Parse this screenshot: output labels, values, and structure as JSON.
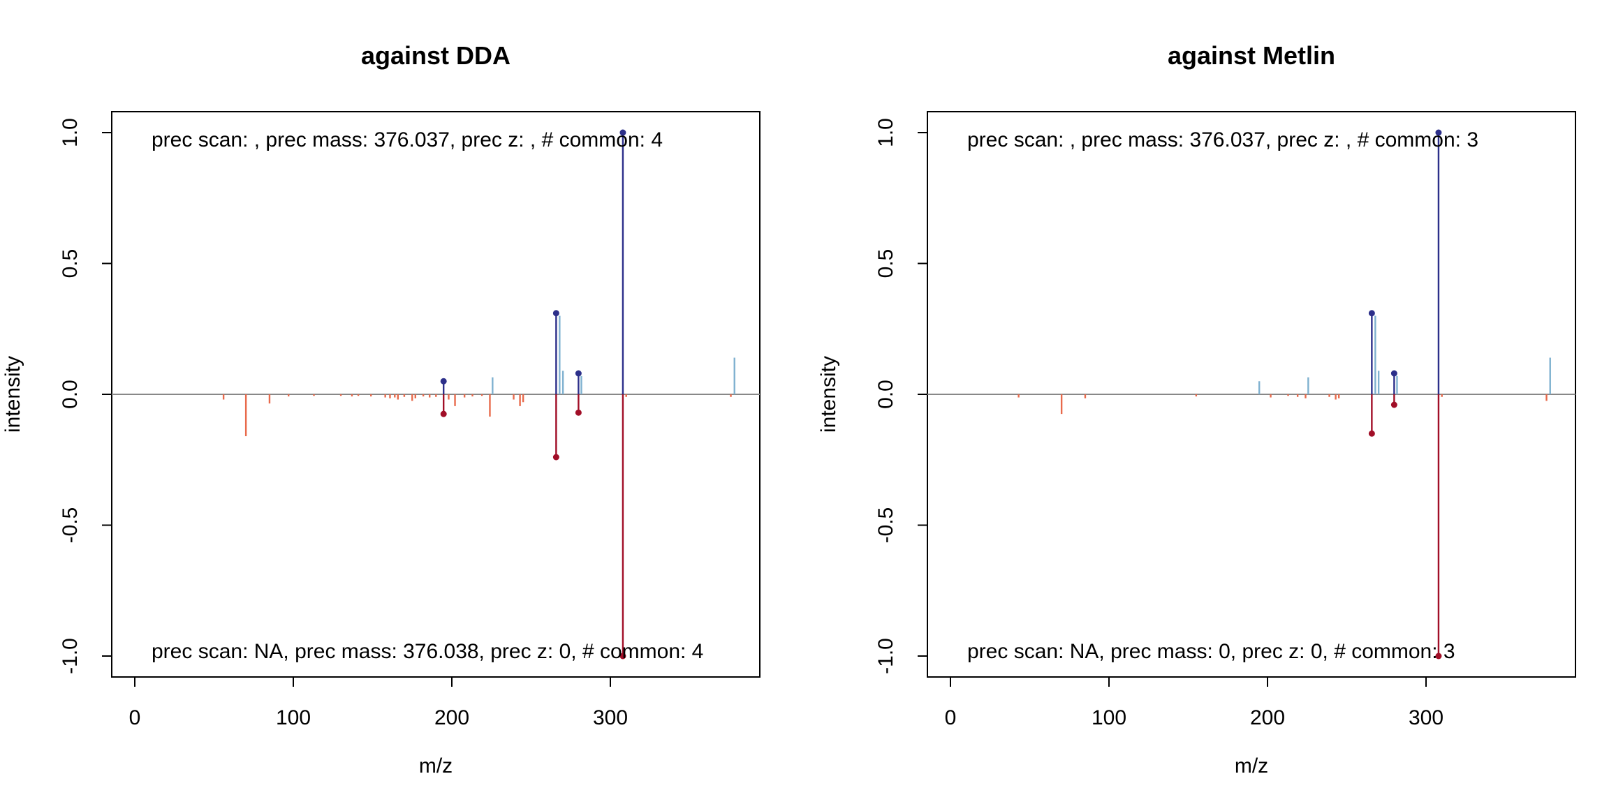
{
  "colors": {
    "query_peak": "#7FB1D0",
    "query_matched": "#2C2F8A",
    "reference_peak": "#E86A4B",
    "reference_matched": "#A10E27",
    "baseline": "#888888",
    "frame": "#000000"
  },
  "chart_data": [
    {
      "type": "mirror-spectrum",
      "title": "against DDA",
      "xlabel": "m/z",
      "ylabel": "intensity",
      "xlim": [
        0,
        385
      ],
      "ylim": [
        -1.0,
        1.0
      ],
      "x_ticks": [
        0,
        100,
        200,
        300
      ],
      "x_tick_labels": [
        "0",
        "100",
        "200",
        "300"
      ],
      "y_ticks": [
        -1.0,
        -0.5,
        0.0,
        0.5,
        1.0
      ],
      "y_tick_labels": [
        "-1.0",
        "-0.5",
        "0.0",
        "0.5",
        "1.0"
      ],
      "grid": false,
      "top_annotation": "prec scan: , prec mass: 376.037, prec z: , # common: 4",
      "bottom_annotation": "prec scan: NA, prec mass: 376.038, prec z: 0, # common: 4",
      "query_peaks": [
        {
          "mz": 194.8,
          "intensity": 0.05,
          "matched": true
        },
        {
          "mz": 225.7,
          "intensity": 0.065,
          "matched": false
        },
        {
          "mz": 265.8,
          "intensity": 0.31,
          "matched": true
        },
        {
          "mz": 268.0,
          "intensity": 0.3,
          "matched": false
        },
        {
          "mz": 270.1,
          "intensity": 0.09,
          "matched": false
        },
        {
          "mz": 279.9,
          "intensity": 0.08,
          "matched": true
        },
        {
          "mz": 281.7,
          "intensity": 0.07,
          "matched": false
        },
        {
          "mz": 307.9,
          "intensity": 1.0,
          "matched": true
        },
        {
          "mz": 378.3,
          "intensity": 0.14,
          "matched": false
        }
      ],
      "reference_peaks": [
        {
          "mz": 56.0,
          "intensity": -0.02,
          "matched": false
        },
        {
          "mz": 70.1,
          "intensity": -0.16,
          "matched": false
        },
        {
          "mz": 85.0,
          "intensity": -0.035,
          "matched": false
        },
        {
          "mz": 97.0,
          "intensity": -0.008,
          "matched": false
        },
        {
          "mz": 113.0,
          "intensity": -0.006,
          "matched": false
        },
        {
          "mz": 130.0,
          "intensity": -0.006,
          "matched": false
        },
        {
          "mz": 137.0,
          "intensity": -0.008,
          "matched": false
        },
        {
          "mz": 141.0,
          "intensity": -0.006,
          "matched": false
        },
        {
          "mz": 149.0,
          "intensity": -0.008,
          "matched": false
        },
        {
          "mz": 158.0,
          "intensity": -0.012,
          "matched": false
        },
        {
          "mz": 161.0,
          "intensity": -0.015,
          "matched": false
        },
        {
          "mz": 164.0,
          "intensity": -0.012,
          "matched": false
        },
        {
          "mz": 166.0,
          "intensity": -0.02,
          "matched": false
        },
        {
          "mz": 170.0,
          "intensity": -0.01,
          "matched": false
        },
        {
          "mz": 175.0,
          "intensity": -0.025,
          "matched": false
        },
        {
          "mz": 177.0,
          "intensity": -0.015,
          "matched": false
        },
        {
          "mz": 182.0,
          "intensity": -0.008,
          "matched": false
        },
        {
          "mz": 186.0,
          "intensity": -0.012,
          "matched": false
        },
        {
          "mz": 190.0,
          "intensity": -0.01,
          "matched": false
        },
        {
          "mz": 194.8,
          "intensity": -0.075,
          "matched": true
        },
        {
          "mz": 198.0,
          "intensity": -0.02,
          "matched": false
        },
        {
          "mz": 202.0,
          "intensity": -0.045,
          "matched": false
        },
        {
          "mz": 208.0,
          "intensity": -0.012,
          "matched": false
        },
        {
          "mz": 213.0,
          "intensity": -0.008,
          "matched": false
        },
        {
          "mz": 219.0,
          "intensity": -0.006,
          "matched": false
        },
        {
          "mz": 224.0,
          "intensity": -0.085,
          "matched": false
        },
        {
          "mz": 239.0,
          "intensity": -0.02,
          "matched": false
        },
        {
          "mz": 243.0,
          "intensity": -0.045,
          "matched": false
        },
        {
          "mz": 245.0,
          "intensity": -0.03,
          "matched": false
        },
        {
          "mz": 265.8,
          "intensity": -0.24,
          "matched": true
        },
        {
          "mz": 279.9,
          "intensity": -0.07,
          "matched": true
        },
        {
          "mz": 307.9,
          "intensity": -1.0,
          "matched": true
        },
        {
          "mz": 310.0,
          "intensity": -0.01,
          "matched": false
        },
        {
          "mz": 376.0,
          "intensity": -0.01,
          "matched": false
        }
      ]
    },
    {
      "type": "mirror-spectrum",
      "title": "against Metlin",
      "xlabel": "m/z",
      "ylabel": "intensity",
      "xlim": [
        0,
        385
      ],
      "ylim": [
        -1.0,
        1.0
      ],
      "x_ticks": [
        0,
        100,
        200,
        300
      ],
      "x_tick_labels": [
        "0",
        "100",
        "200",
        "300"
      ],
      "y_ticks": [
        -1.0,
        -0.5,
        0.0,
        0.5,
        1.0
      ],
      "y_tick_labels": [
        "-1.0",
        "-0.5",
        "0.0",
        "0.5",
        "1.0"
      ],
      "grid": false,
      "top_annotation": "prec scan: , prec mass: 376.037, prec z: , # common: 3",
      "bottom_annotation": "prec scan: NA, prec mass: 0, prec z: 0, # common: 3",
      "query_peaks": [
        {
          "mz": 194.8,
          "intensity": 0.05,
          "matched": false
        },
        {
          "mz": 225.7,
          "intensity": 0.065,
          "matched": false
        },
        {
          "mz": 265.8,
          "intensity": 0.31,
          "matched": true
        },
        {
          "mz": 268.0,
          "intensity": 0.3,
          "matched": false
        },
        {
          "mz": 270.1,
          "intensity": 0.09,
          "matched": false
        },
        {
          "mz": 279.9,
          "intensity": 0.08,
          "matched": true
        },
        {
          "mz": 281.7,
          "intensity": 0.07,
          "matched": false
        },
        {
          "mz": 307.9,
          "intensity": 1.0,
          "matched": true
        },
        {
          "mz": 378.3,
          "intensity": 0.14,
          "matched": false
        }
      ],
      "reference_peaks": [
        {
          "mz": 43.0,
          "intensity": -0.012,
          "matched": false
        },
        {
          "mz": 70.1,
          "intensity": -0.075,
          "matched": false
        },
        {
          "mz": 85.0,
          "intensity": -0.015,
          "matched": false
        },
        {
          "mz": 155.0,
          "intensity": -0.008,
          "matched": false
        },
        {
          "mz": 202.0,
          "intensity": -0.012,
          "matched": false
        },
        {
          "mz": 213.0,
          "intensity": -0.006,
          "matched": false
        },
        {
          "mz": 219.0,
          "intensity": -0.01,
          "matched": false
        },
        {
          "mz": 224.0,
          "intensity": -0.015,
          "matched": false
        },
        {
          "mz": 239.0,
          "intensity": -0.01,
          "matched": false
        },
        {
          "mz": 243.0,
          "intensity": -0.02,
          "matched": false
        },
        {
          "mz": 245.0,
          "intensity": -0.015,
          "matched": false
        },
        {
          "mz": 265.8,
          "intensity": -0.15,
          "matched": true
        },
        {
          "mz": 279.9,
          "intensity": -0.04,
          "matched": true
        },
        {
          "mz": 307.9,
          "intensity": -1.0,
          "matched": true
        },
        {
          "mz": 310.0,
          "intensity": -0.01,
          "matched": false
        },
        {
          "mz": 376.0,
          "intensity": -0.025,
          "matched": false
        }
      ]
    }
  ]
}
